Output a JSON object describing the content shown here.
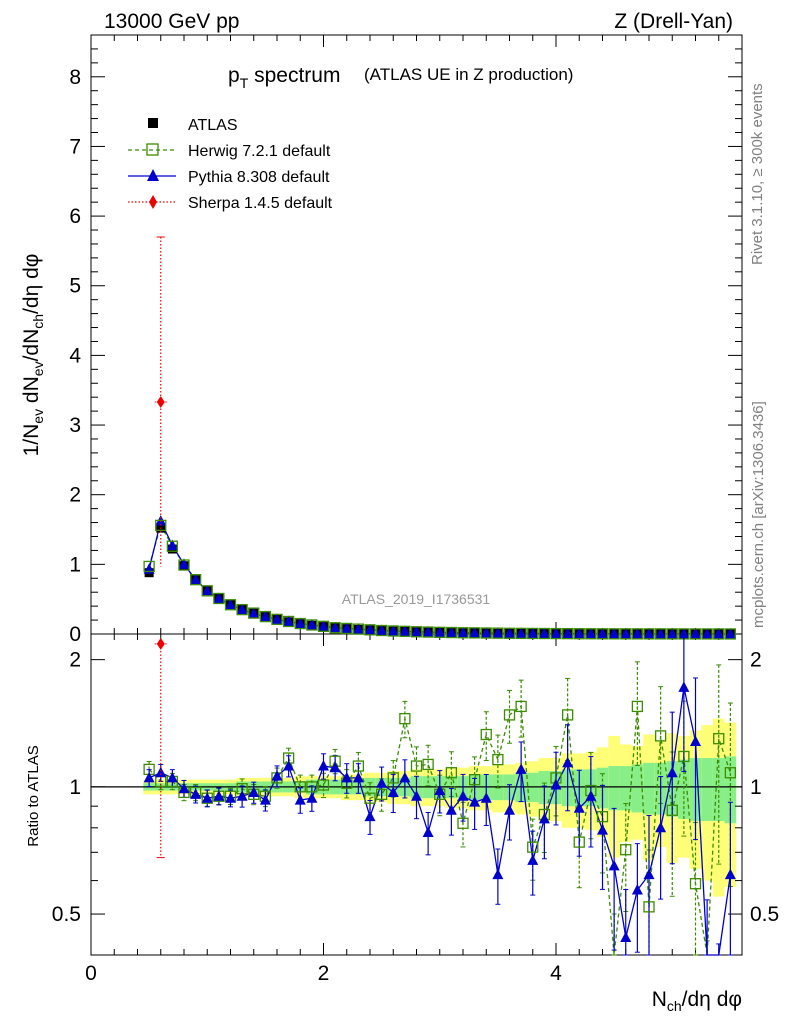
{
  "header": {
    "energy_label": "13000 GeV pp",
    "process_label": "Z (Drell-Yan)"
  },
  "side_labels": {
    "rivet": "Rivet 3.1.10, ≥ 300k events",
    "mcplots": "mcplots.cern.ch [arXiv:1306.3436]"
  },
  "watermark": "ATLAS_2019_I1736531",
  "chart_data": {
    "type": "scatter",
    "title_main": "p",
    "title_sub": "T",
    "title_word": "spectrum",
    "subtitle": "(ATLAS UE in Z production)",
    "ylabel_top": "1/N_ev dN_ev/dN_ch/dη dφ",
    "ylabel_ratio": "Ratio to ATLAS",
    "xlabel": "N_ch/dη dφ",
    "x_range": [
      0,
      5.6
    ],
    "y_range_top": [
      0,
      8.6
    ],
    "y_range_ratio": [
      0.4,
      2.3
    ],
    "x_ticks": [
      "0",
      "2",
      "4"
    ],
    "y_ticks_top": [
      "0",
      "1",
      "2",
      "3",
      "4",
      "5",
      "6",
      "7",
      "8"
    ],
    "y_ticks_ratio": [
      "0.5",
      "1",
      "2"
    ],
    "colors": {
      "atlas": "#000000",
      "herwig": "#3a8c00",
      "pythia": "#0000cc",
      "sherpa": "#ee0000",
      "band_yellow": "#ffff77",
      "band_green": "#88ee88"
    },
    "legend": [
      {
        "name": "ATLAS",
        "style": "marker"
      },
      {
        "name": "Herwig 7.2.1 default",
        "style": "dashed-open-square"
      },
      {
        "name": "Pythia 8.308 default",
        "style": "solid-triangle"
      },
      {
        "name": "Sherpa 1.4.5 default",
        "style": "dotted-diamond"
      }
    ],
    "x": [
      0.5,
      0.6,
      0.7,
      0.8,
      0.9,
      1.0,
      1.1,
      1.2,
      1.3,
      1.4,
      1.5,
      1.6,
      1.7,
      1.8,
      1.9,
      2.0,
      2.1,
      2.2,
      2.3,
      2.4,
      2.5,
      2.6,
      2.7,
      2.8,
      2.9,
      3.0,
      3.1,
      3.2,
      3.3,
      3.4,
      3.5,
      3.6,
      3.7,
      3.8,
      3.9,
      4.0,
      4.1,
      4.2,
      4.3,
      4.4,
      4.5,
      4.6,
      4.7,
      4.8,
      4.9,
      5.0,
      5.1,
      5.2,
      5.3,
      5.4,
      5.5
    ],
    "atlas_values": [
      0.88,
      1.52,
      1.22,
      0.98,
      0.78,
      0.63,
      0.52,
      0.43,
      0.36,
      0.3,
      0.25,
      0.21,
      0.175,
      0.148,
      0.125,
      0.106,
      0.09,
      0.077,
      0.066,
      0.057,
      0.049,
      0.042,
      0.036,
      0.031,
      0.027,
      0.023,
      0.02,
      0.017,
      0.015,
      0.013,
      0.011,
      0.0095,
      0.0082,
      0.0071,
      0.0061,
      0.0053,
      0.0046,
      0.004,
      0.0034,
      0.003,
      0.0026,
      0.0022,
      0.0019,
      0.0017,
      0.0015,
      0.0013,
      0.0011,
      0.001,
      0.0008,
      0.0007,
      0.0006
    ],
    "herwig_values": [
      0.97,
      1.56,
      1.26,
      0.99,
      0.78,
      0.62,
      0.51,
      0.42,
      0.35,
      0.3,
      0.25,
      0.21,
      0.18,
      0.15,
      0.13,
      0.11,
      0.09,
      0.08,
      0.07,
      0.06,
      0.05,
      0.043,
      0.038,
      0.032,
      0.028,
      0.024,
      0.021,
      0.018,
      0.016,
      0.014,
      0.012,
      0.01,
      0.009,
      0.008,
      0.007,
      0.006,
      0.005,
      0.004,
      0.0035,
      0.003,
      0.0025,
      0.0022,
      0.002,
      0.0018,
      0.0016,
      0.0014,
      0.0012,
      0.001,
      0.0009,
      0.0008,
      0.0007
    ],
    "pythia_values": [
      0.93,
      1.62,
      1.27,
      1.0,
      0.78,
      0.62,
      0.51,
      0.42,
      0.35,
      0.29,
      0.25,
      0.21,
      0.18,
      0.15,
      0.13,
      0.11,
      0.09,
      0.08,
      0.07,
      0.06,
      0.05,
      0.043,
      0.037,
      0.031,
      0.027,
      0.023,
      0.02,
      0.017,
      0.015,
      0.013,
      0.011,
      0.0095,
      0.0082,
      0.0071,
      0.0061,
      0.0053,
      0.0046,
      0.004,
      0.0034,
      0.003,
      0.0026,
      0.0022,
      0.0019,
      0.0017,
      0.0015,
      0.0013,
      0.0011,
      0.001,
      0.0008,
      0.0007,
      0.0006
    ],
    "sherpa_points": [
      {
        "x": 0.6,
        "y": 3.33,
        "y_err_low": 0.97,
        "y_err_high": 5.7,
        "ratio": 2.18,
        "ratio_err_low": 0.68
      }
    ],
    "ratio_x": [
      0.5,
      0.6,
      0.7,
      0.8,
      0.9,
      1.0,
      1.1,
      1.2,
      1.3,
      1.4,
      1.5,
      1.6,
      1.7,
      1.8,
      1.9,
      2.0,
      2.1,
      2.2,
      2.3,
      2.4,
      2.5,
      2.6,
      2.7,
      2.8,
      2.9,
      3.0,
      3.1,
      3.2,
      3.3,
      3.4,
      3.5,
      3.6,
      3.7,
      3.8,
      3.9,
      4.0,
      4.1,
      4.2,
      4.3,
      4.4,
      4.5,
      4.6,
      4.7,
      4.8,
      4.9,
      5.0,
      5.1,
      5.2,
      5.3,
      5.4,
      5.5
    ],
    "herwig_ratio": [
      1.1,
      1.03,
      1.03,
      0.97,
      0.97,
      0.94,
      0.95,
      0.95,
      0.99,
      0.96,
      0.95,
      1.05,
      1.17,
      1.0,
      1.0,
      1.01,
      1.15,
      1.02,
      1.12,
      0.94,
      0.96,
      1.05,
      1.45,
      1.12,
      1.13,
      0.96,
      1.08,
      0.82,
      1.04,
      1.33,
      1.16,
      1.48,
      1.55,
      0.72,
      0.86,
      1.05,
      1.48,
      0.74,
      0.98,
      0.85,
      0.37,
      0.71,
      1.55,
      0.52,
      1.32,
      0.88,
      1.18,
      0.59,
      0.3,
      1.3,
      1.08
    ],
    "pythia_ratio": [
      1.05,
      1.08,
      1.05,
      0.99,
      0.96,
      0.94,
      0.95,
      0.94,
      0.95,
      0.97,
      0.93,
      1.06,
      1.12,
      0.93,
      0.94,
      1.12,
      1.11,
      1.05,
      1.05,
      0.85,
      1.02,
      0.97,
      1.05,
      0.95,
      0.78,
      0.98,
      0.88,
      0.95,
      0.92,
      0.94,
      0.62,
      0.88,
      1.1,
      0.67,
      0.84,
      1.01,
      1.14,
      0.89,
      0.95,
      0.79,
      0.65,
      0.44,
      0.57,
      0.62,
      0.8,
      1.08,
      1.72,
      1.28,
      0.37,
      0.28,
      0.62
    ],
    "band_inner_halfwidth": [
      0.02,
      0.02,
      0.02,
      0.02,
      0.02,
      0.02,
      0.02,
      0.02,
      0.03,
      0.03,
      0.03,
      0.03,
      0.03,
      0.03,
      0.04,
      0.04,
      0.04,
      0.04,
      0.04,
      0.05,
      0.05,
      0.05,
      0.05,
      0.06,
      0.06,
      0.06,
      0.06,
      0.06,
      0.07,
      0.07,
      0.07,
      0.07,
      0.08,
      0.08,
      0.09,
      0.09,
      0.1,
      0.1,
      0.1,
      0.11,
      0.12,
      0.12,
      0.13,
      0.14,
      0.14,
      0.15,
      0.16,
      0.17,
      0.17,
      0.17,
      0.18
    ],
    "band_outer_halfwidth": [
      0.04,
      0.04,
      0.04,
      0.04,
      0.04,
      0.04,
      0.04,
      0.04,
      0.05,
      0.05,
      0.05,
      0.05,
      0.05,
      0.06,
      0.06,
      0.06,
      0.06,
      0.07,
      0.07,
      0.08,
      0.08,
      0.09,
      0.09,
      0.1,
      0.1,
      0.1,
      0.11,
      0.11,
      0.12,
      0.12,
      0.13,
      0.13,
      0.14,
      0.15,
      0.17,
      0.17,
      0.2,
      0.2,
      0.21,
      0.24,
      0.32,
      0.26,
      0.25,
      0.33,
      0.28,
      0.34,
      0.32,
      0.36,
      0.4,
      0.45,
      0.42
    ]
  }
}
